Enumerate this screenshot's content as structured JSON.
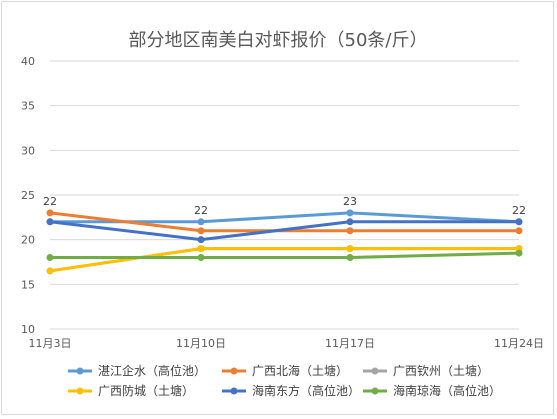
{
  "chart_data": {
    "type": "line",
    "title": "部分地区南美白对虾报价（50条/斤）",
    "xlabel": "",
    "ylabel": "",
    "categories": [
      "11月3日",
      "11月10日",
      "11月17日",
      "11月24日"
    ],
    "ylim": [
      10,
      40
    ],
    "yticks": [
      10,
      15,
      20,
      25,
      30,
      35,
      40
    ],
    "grid": true,
    "legend_position": "bottom",
    "series": [
      {
        "name": "湛江企水（高位池）",
        "color": "#5b9bd5",
        "values": [
          22,
          22,
          23,
          22
        ],
        "labels": [
          "22",
          "22",
          "23",
          "22"
        ]
      },
      {
        "name": "广西北海（土塘）",
        "color": "#ed7d31",
        "values": [
          23,
          21,
          21,
          21
        ]
      },
      {
        "name": "广西钦州（土塘）",
        "color": "#a5a5a5",
        "values": [
          16.5,
          19,
          19,
          19
        ]
      },
      {
        "name": "广西防城（土塘）",
        "color": "#ffc000",
        "values": [
          16.5,
          19,
          19,
          19
        ]
      },
      {
        "name": "海南东方（高位池）",
        "color": "#4472c4",
        "values": [
          22,
          20,
          22,
          22
        ]
      },
      {
        "name": "海南琼海（高位池）",
        "color": "#70ad47",
        "values": [
          18,
          18,
          18,
          18.5
        ]
      }
    ]
  }
}
